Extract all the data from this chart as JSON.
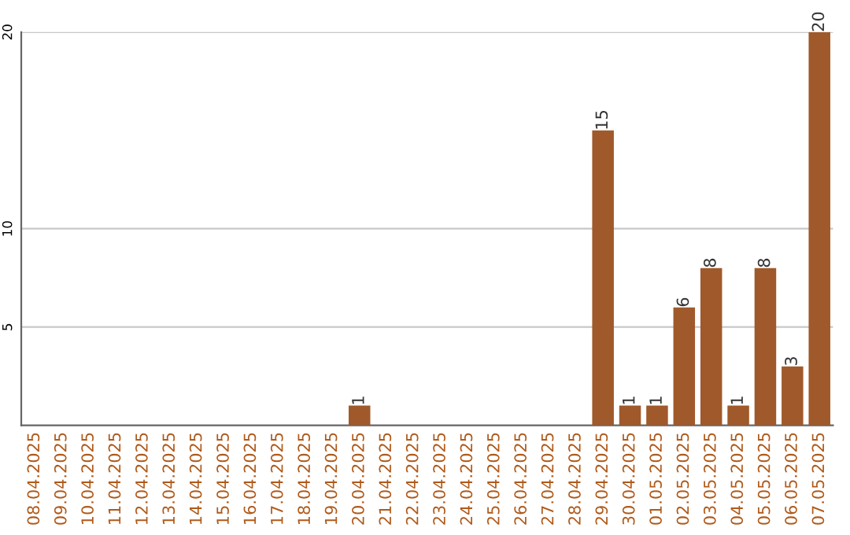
{
  "chart_data": {
    "type": "bar",
    "categories": [
      "08.04.2025",
      "09.04.2025",
      "10.04.2025",
      "11.04.2025",
      "12.04.2025",
      "13.04.2025",
      "14.04.2025",
      "15.04.2025",
      "16.04.2025",
      "17.04.2025",
      "18.04.2025",
      "19.04.2025",
      "20.04.2025",
      "21.04.2025",
      "22.04.2025",
      "23.04.2025",
      "24.04.2025",
      "25.04.2025",
      "26.04.2025",
      "27.04.2025",
      "28.04.2025",
      "29.04.2025",
      "30.04.2025",
      "01.05.2025",
      "02.05.2025",
      "03.05.2025",
      "04.05.2025",
      "05.05.2025",
      "06.05.2025",
      "07.05.2025"
    ],
    "values": [
      0,
      0,
      0,
      0,
      0,
      0,
      0,
      0,
      0,
      0,
      0,
      0,
      1,
      0,
      0,
      0,
      0,
      0,
      0,
      0,
      0,
      15,
      1,
      1,
      6,
      8,
      1,
      8,
      3,
      20
    ],
    "value_labels": [
      null,
      null,
      null,
      null,
      null,
      null,
      null,
      null,
      null,
      null,
      null,
      null,
      "1",
      null,
      null,
      null,
      null,
      null,
      null,
      null,
      null,
      "15",
      "1",
      "1",
      "6",
      "8",
      "1",
      "8",
      "3",
      "20"
    ],
    "color": "#a0592a",
    "ylim": [
      0,
      20
    ],
    "yticks": [
      5,
      10,
      20
    ],
    "grid": "y"
  }
}
